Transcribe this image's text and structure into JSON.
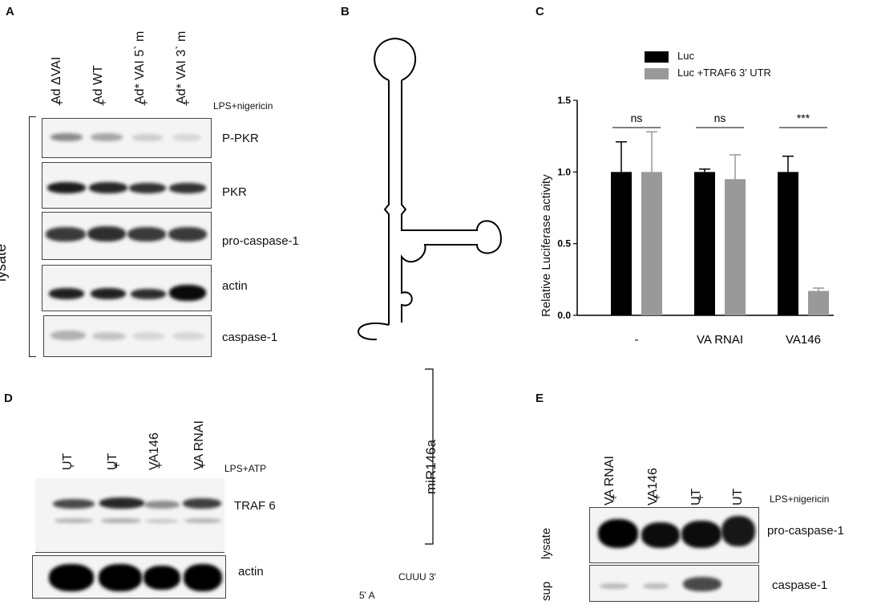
{
  "panels": {
    "A": {
      "letter": "A",
      "lanes": [
        "Ad ΔVAI",
        "Ad WT",
        "Ad* VAI 5` m",
        "Ad* VAI 3` m"
      ],
      "treatment_signs": [
        "+",
        "+",
        "+",
        "+"
      ],
      "treatment_label": "LPS+nigericin",
      "group_label": "lysate",
      "blots": [
        {
          "label": "P-PKR",
          "intensity": [
            0.55,
            0.4,
            0.2,
            0.15
          ]
        },
        {
          "label": "PKR",
          "intensity": [
            0.95,
            0.9,
            0.85,
            0.85
          ]
        },
        {
          "label": "pro-caspase-1",
          "intensity": [
            0.85,
            0.9,
            0.85,
            0.85
          ]
        },
        {
          "label": "actin",
          "intensity": [
            0.9,
            0.9,
            0.85,
            1.0
          ]
        },
        {
          "label": "caspase-1",
          "intensity": [
            0.35,
            0.25,
            0.15,
            0.15
          ]
        }
      ]
    },
    "B": {
      "letter": "B",
      "mir_label": "miR146a",
      "five_prime": "5' A",
      "three_prime_tail": "CUUU 3'"
    },
    "C": {
      "letter": "C",
      "chart_data": {
        "type": "bar",
        "categories": [
          "-",
          "VA RNAI",
          "VA146"
        ],
        "series": [
          {
            "name": "Luc",
            "color": "#000000",
            "values": [
              1.0,
              1.0,
              1.0
            ],
            "errors": [
              0.21,
              0.02,
              0.11
            ]
          },
          {
            "name": "Luc +TRAF6 3’ UTR",
            "color": "#999999",
            "values": [
              1.0,
              0.95,
              0.17
            ],
            "errors": [
              0.28,
              0.17,
              0.02
            ]
          }
        ],
        "ylabel": "Relative Luciferase activity",
        "yticks": [
          "0.0",
          "0.5",
          "1.0",
          "1.5"
        ],
        "ylim": [
          0,
          1.5
        ],
        "significance": [
          "ns",
          "ns",
          "***"
        ]
      }
    },
    "D": {
      "letter": "D",
      "lanes": [
        "UT",
        "UT",
        "VA146",
        "VA RNAI"
      ],
      "treatment_signs": [
        "-",
        "+",
        "+",
        "+"
      ],
      "treatment_label": "LPS+ATP",
      "blots": [
        {
          "label": "TRAF 6",
          "intensity": [
            0.7,
            0.9,
            0.4,
            0.8
          ]
        },
        {
          "label": "actin",
          "intensity": [
            1.0,
            1.0,
            1.0,
            1.0
          ]
        }
      ]
    },
    "E": {
      "letter": "E",
      "lanes": [
        "VA RNAI",
        "VA146",
        "UT",
        "UT"
      ],
      "treatment_signs": [
        "+",
        "+",
        "+",
        "-"
      ],
      "treatment_label": "LPS+nigericin",
      "blots": [
        {
          "label": "pro-caspase-1",
          "side": "lysate",
          "intensity": [
            1.0,
            0.95,
            0.95,
            0.9
          ]
        },
        {
          "label": "caspase-1",
          "side": "sup",
          "intensity": [
            0.3,
            0.3,
            0.75,
            0.0
          ]
        }
      ]
    }
  }
}
